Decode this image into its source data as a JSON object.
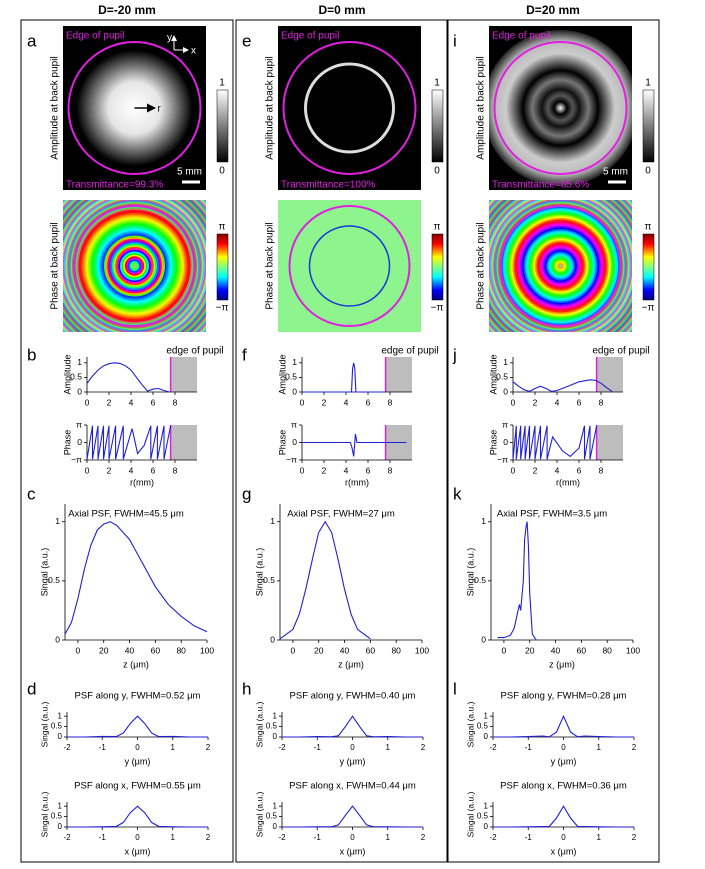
{
  "columns": [
    {
      "header": "D=-20 mm",
      "panel_labels": [
        "a",
        "b",
        "c",
        "d"
      ],
      "amplitude_map": {
        "ylabel": "Amplitude at back pupil",
        "edge_label": "Edge of pupil",
        "transmittance": "Transmittance=99.3%",
        "scale": "5 mm",
        "cbar": [
          1,
          0
        ],
        "axis_labels": [
          "y",
          "x",
          "r"
        ]
      },
      "phase_map": {
        "ylabel": "Phase at back pupil",
        "cbar": [
          "π",
          "−π"
        ]
      }
    },
    {
      "header": "D=0 mm",
      "panel_labels": [
        "e",
        "f",
        "g",
        "h"
      ],
      "amplitude_map": {
        "ylabel": "Amplitude at back pupil",
        "edge_label": "Edge of pupil",
        "transmittance": "Transmittance=100%",
        "cbar": [
          1,
          0
        ]
      },
      "phase_map": {
        "ylabel": "Phase at back pupil",
        "cbar": [
          "π",
          "−π"
        ]
      }
    },
    {
      "header": "D=20 mm",
      "panel_labels": [
        "i",
        "j",
        "k",
        "l"
      ],
      "amplitude_map": {
        "ylabel": "Amplitude at back pupil",
        "edge_label": "Edge of pupil",
        "transmittance": "Transmittance=85.6%",
        "scale": "5 mm",
        "cbar": [
          1,
          0
        ]
      },
      "phase_map": {
        "ylabel": "Phase at back pupil",
        "cbar": [
          "π",
          "−π"
        ]
      }
    }
  ],
  "chart_data": [
    {
      "type": "line",
      "ylabel": "Amplitude",
      "annotation": "edge of pupil",
      "edge": 7.6,
      "shade": [
        7.6,
        10
      ],
      "color": "#1f1fd6",
      "xlim": [
        0,
        10
      ],
      "ylim": [
        0,
        1.2
      ],
      "xticks": [
        0,
        2,
        4,
        6,
        8
      ],
      "yticks": [
        0,
        0.5,
        1
      ],
      "x": [
        0,
        0.5,
        1,
        1.5,
        2,
        2.5,
        3,
        3.5,
        4,
        4.5,
        5,
        5.5,
        6,
        6.5,
        7,
        7.5
      ],
      "values": [
        0.3,
        0.55,
        0.75,
        0.9,
        0.97,
        1,
        0.98,
        0.9,
        0.75,
        0.5,
        0.25,
        0.03,
        0.1,
        0.12,
        0.05,
        0
      ]
    },
    {
      "type": "line",
      "ylabel": "Phase",
      "xlabel": "r(mm)",
      "edge": 7.6,
      "shade": [
        7.6,
        10
      ],
      "color": "#1f1fd6",
      "xlim": [
        0,
        10
      ],
      "ylim": [
        -3.1416,
        3.1416
      ],
      "xticks": [
        0,
        2,
        4,
        6,
        8
      ],
      "yticks": [
        {
          "value": -3.1416,
          "label": "−π"
        },
        0,
        {
          "value": 3.1416,
          "label": "π"
        }
      ],
      "x": [
        0,
        0.5,
        0.5,
        1,
        1,
        1.5,
        1.5,
        2,
        2,
        2.6,
        2.6,
        3.3,
        3.3,
        4.1,
        4.6,
        5.2,
        5.8,
        5.8,
        6.4,
        6.4,
        7,
        7,
        7.6
      ],
      "values": [
        -3,
        3,
        -3,
        3,
        -3,
        3,
        -3,
        3,
        -3,
        3,
        -3,
        3,
        -3,
        2.5,
        -2,
        -0.5,
        3,
        -3,
        3,
        -3,
        3,
        -3,
        3
      ]
    },
    {
      "type": "line",
      "title": "Axial PSF, FWHM=45.5 μm",
      "xlabel": "z (μm)",
      "ylabel": "Singal (a.u.)",
      "color": "#1f1fd6",
      "xlim": [
        -10,
        100
      ],
      "ylim": [
        0,
        1.15
      ],
      "xticks": [
        0,
        20,
        40,
        60,
        80,
        100
      ],
      "yticks": [
        0,
        0.5,
        1
      ],
      "x": [
        -10,
        -5,
        0,
        5,
        10,
        15,
        20,
        25,
        30,
        40,
        50,
        60,
        70,
        80,
        90,
        100
      ],
      "values": [
        0.05,
        0.15,
        0.35,
        0.6,
        0.8,
        0.93,
        0.98,
        1,
        0.97,
        0.85,
        0.65,
        0.45,
        0.3,
        0.2,
        0.12,
        0.07
      ]
    },
    {
      "type": "line",
      "title": "PSF along y, FWHM=0.52 μm",
      "xlabel": "y (μm)",
      "ylabel": "Singal (a.u.)",
      "color": "#1f1fd6",
      "xlim": [
        -2,
        2
      ],
      "ylim": [
        0,
        1.2
      ],
      "xticks": [
        -2,
        -1,
        0,
        1,
        2
      ],
      "yticks": [
        0,
        0.5,
        1
      ],
      "x": [
        -2,
        -1.5,
        -1,
        -0.6,
        -0.4,
        -0.2,
        0,
        0.2,
        0.4,
        0.6,
        1,
        1.5,
        2
      ],
      "values": [
        0,
        0,
        0.03,
        0.02,
        0.19,
        0.66,
        1,
        0.66,
        0.19,
        0.02,
        0.03,
        0,
        0
      ]
    },
    {
      "type": "line",
      "title": "PSF along x, FWHM=0.55 μm",
      "xlabel": "x (μm)",
      "ylabel": "Singal (a.u.)",
      "color": "#1f1fd6",
      "xlim": [
        -2,
        2
      ],
      "ylim": [
        0,
        1.2
      ],
      "xticks": [
        -2,
        -1,
        0,
        1,
        2
      ],
      "yticks": [
        0,
        0.5,
        1
      ],
      "x": [
        -2,
        -1.5,
        -1,
        -0.6,
        -0.4,
        -0.2,
        0,
        0.2,
        0.4,
        0.6,
        1,
        1.5,
        2
      ],
      "values": [
        0,
        0,
        0.01,
        0.03,
        0.22,
        0.69,
        1,
        0.69,
        0.22,
        0.03,
        0.01,
        0,
        0
      ]
    },
    {
      "type": "line",
      "ylabel": "Amplitude",
      "annotation": "edge of pupil",
      "edge": 7.6,
      "shade": [
        7.6,
        10
      ],
      "color": "#1f1fd6",
      "xlim": [
        0,
        10
      ],
      "ylim": [
        0,
        1.2
      ],
      "xticks": [
        0,
        2,
        4,
        6,
        8
      ],
      "yticks": [
        0,
        0.5,
        1
      ],
      "x": [
        0,
        4.5,
        4.6,
        4.7,
        4.8,
        4.9,
        7.6
      ],
      "values": [
        0,
        0,
        0.8,
        1,
        0.8,
        0,
        0
      ]
    },
    {
      "type": "line",
      "ylabel": "Phase",
      "xlabel": "r(mm)",
      "edge": 7.6,
      "shade": [
        7.6,
        10
      ],
      "color": "#1f1fd6",
      "xlim": [
        0,
        10
      ],
      "ylim": [
        -3.1416,
        3.1416
      ],
      "xticks": [
        0,
        2,
        4,
        6,
        8
      ],
      "yticks": [
        {
          "value": -3.1416,
          "label": "−π"
        },
        0,
        {
          "value": 3.1416,
          "label": "π"
        }
      ],
      "x": [
        0,
        4.4,
        4.55,
        4.7,
        4.85,
        5,
        7.6,
        9.5
      ],
      "values": [
        0,
        0,
        -1,
        -2.5,
        1.5,
        0,
        0,
        0
      ]
    },
    {
      "type": "line",
      "title": "Axial PSF, FWHM=27 μm",
      "xlabel": "z (μm)",
      "ylabel": "Singal (a.u.)",
      "color": "#1f1fd6",
      "xlim": [
        -10,
        100
      ],
      "ylim": [
        0,
        1.15
      ],
      "xticks": [
        0,
        20,
        40,
        60,
        80,
        100
      ],
      "yticks": [
        0,
        0.5,
        1
      ],
      "x": [
        -10,
        0,
        5,
        10,
        15,
        20,
        25,
        30,
        35,
        40,
        45,
        50,
        60
      ],
      "values": [
        0.01,
        0.09,
        0.22,
        0.43,
        0.68,
        0.91,
        1,
        0.91,
        0.68,
        0.43,
        0.22,
        0.09,
        0.01
      ]
    },
    {
      "type": "line",
      "title": "PSF along y, FWHM=0.40 μm",
      "xlabel": "y (μm)",
      "ylabel": "Singal (a.u.)",
      "color": "#1f1fd6",
      "xlim": [
        -2,
        2
      ],
      "ylim": [
        0,
        1.2
      ],
      "xticks": [
        -2,
        -1,
        0,
        1,
        2
      ],
      "yticks": [
        0,
        0.5,
        1
      ],
      "x": [
        -2,
        -1.5,
        -1,
        -0.6,
        -0.4,
        -0.2,
        0,
        0.2,
        0.4,
        0.6,
        1,
        1.5,
        2
      ],
      "values": [
        0,
        0,
        0.02,
        0.01,
        0.06,
        0.5,
        1,
        0.5,
        0.06,
        0.01,
        0.02,
        0,
        0
      ]
    },
    {
      "type": "line",
      "title": "PSF along x, FWHM=0.44 μm",
      "xlabel": "x (μm)",
      "ylabel": "Singal (a.u.)",
      "color": "#1f1fd6",
      "xlim": [
        -2,
        2
      ],
      "ylim": [
        0,
        1.2
      ],
      "xticks": [
        -2,
        -1,
        0,
        1,
        2
      ],
      "yticks": [
        0,
        0.5,
        1
      ],
      "x": [
        -2,
        -1.5,
        -1,
        -0.6,
        -0.4,
        -0.2,
        0,
        0.2,
        0.4,
        0.6,
        1,
        1.5,
        2
      ],
      "values": [
        0,
        0,
        0.01,
        0.01,
        0.1,
        0.56,
        1,
        0.56,
        0.1,
        0.01,
        0.01,
        0,
        0
      ]
    },
    {
      "type": "line",
      "ylabel": "Amplitude",
      "annotation": "edge of pupil",
      "edge": 7.6,
      "shade": [
        7.6,
        10
      ],
      "color": "#1f1fd6",
      "xlim": [
        0,
        10
      ],
      "ylim": [
        0,
        1.2
      ],
      "xticks": [
        0,
        2,
        4,
        6,
        8
      ],
      "yticks": [
        0,
        0.5,
        1
      ],
      "x": [
        0,
        0.5,
        1,
        1.5,
        2,
        2.5,
        3,
        3.5,
        4,
        5,
        6,
        7,
        7.5,
        8,
        8.5,
        9
      ],
      "values": [
        0.35,
        0.2,
        0.08,
        0.02,
        0.12,
        0.2,
        0.12,
        0.02,
        0.05,
        0.2,
        0.35,
        0.42,
        0.4,
        0.3,
        0.15,
        0.02
      ]
    },
    {
      "type": "line",
      "ylabel": "Phase",
      "xlabel": "r(mm)",
      "edge": 7.6,
      "shade": [
        7.6,
        10
      ],
      "color": "#1f1fd6",
      "xlim": [
        0,
        10
      ],
      "ylim": [
        -3.1416,
        3.1416
      ],
      "xticks": [
        0,
        2,
        4,
        6,
        8
      ],
      "yticks": [
        {
          "value": -3.1416,
          "label": "−π"
        },
        0,
        {
          "value": 3.1416,
          "label": "π"
        }
      ],
      "x": [
        0,
        0.3,
        0.3,
        0.7,
        0.7,
        1.1,
        1.1,
        1.5,
        1.5,
        2,
        2,
        2.5,
        2.5,
        3.1,
        3.1,
        3.6,
        4.5,
        5.2,
        6,
        6.5,
        6.5,
        7,
        7,
        7.6
      ],
      "values": [
        -3,
        3,
        -3,
        3,
        -3,
        3,
        -3,
        3,
        -3,
        3,
        -3,
        3,
        -3,
        3,
        -3,
        1,
        -1.5,
        -2.5,
        -1,
        3,
        -3,
        3,
        -3,
        3
      ]
    },
    {
      "type": "line",
      "title": "Axial PSF, FWHM=3.5 μm",
      "xlabel": "z (μm)",
      "ylabel": "Singal (a.u.)",
      "color": "#1f1fd6",
      "xlim": [
        -10,
        100
      ],
      "ylim": [
        0,
        1.15
      ],
      "xticks": [
        0,
        20,
        40,
        60,
        80,
        100
      ],
      "yticks": [
        0,
        0.5,
        1
      ],
      "x": [
        -5,
        0,
        5,
        8,
        10,
        12,
        13,
        15,
        16,
        17,
        18,
        19,
        20,
        22,
        25
      ],
      "values": [
        0.02,
        0.02,
        0.04,
        0.1,
        0.2,
        0.3,
        0.25,
        0.5,
        0.85,
        0.95,
        1,
        0.8,
        0.4,
        0.05,
        0
      ]
    },
    {
      "type": "line",
      "title": "PSF along y, FWHM=0.28 μm",
      "xlabel": "y (μm)",
      "ylabel": "Singal (a.u.)",
      "color": "#1f1fd6",
      "xlim": [
        -2,
        2
      ],
      "ylim": [
        0,
        1.2
      ],
      "xticks": [
        -2,
        -1,
        0,
        1,
        2
      ],
      "yticks": [
        0,
        0.5,
        1
      ],
      "x": [
        -2,
        -1.5,
        -1,
        -0.6,
        -0.4,
        -0.2,
        0,
        0.2,
        0.4,
        0.6,
        1,
        1.5,
        2
      ],
      "values": [
        0,
        0,
        0.02,
        0.05,
        0.01,
        0.24,
        1,
        0.24,
        0.01,
        0.05,
        0.02,
        0,
        0
      ]
    },
    {
      "type": "line",
      "title": "PSF along x, FWHM=0.36 μm",
      "xlabel": "x (μm)",
      "ylabel": "Singal (a.u.)",
      "color": "#1f1fd6",
      "xlim": [
        -2,
        2
      ],
      "ylim": [
        0,
        1.2
      ],
      "xticks": [
        -2,
        -1,
        0,
        1,
        2
      ],
      "yticks": [
        0,
        0.5,
        1
      ],
      "x": [
        -2,
        -1.5,
        -1,
        -0.6,
        -0.4,
        -0.2,
        0,
        0.2,
        0.4,
        0.6,
        1,
        1.5,
        2
      ],
      "values": [
        0,
        0,
        0.01,
        0.02,
        0.03,
        0.43,
        1,
        0.43,
        0.03,
        0.02,
        0.01,
        0,
        0
      ]
    }
  ]
}
